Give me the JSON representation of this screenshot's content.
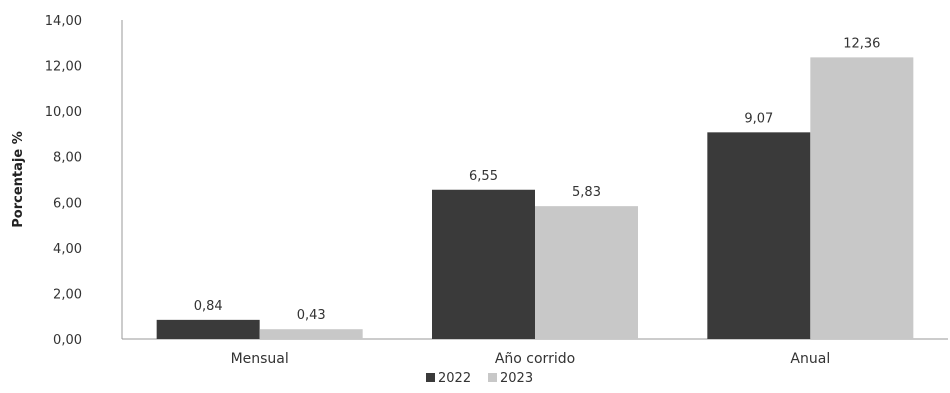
{
  "chart_data": {
    "type": "bar",
    "title": "",
    "xlabel": "",
    "ylabel": "Porcentaje %",
    "categories": [
      "Mensual",
      "Año corrido",
      "Anual"
    ],
    "series": [
      {
        "name": "2022",
        "values": [
          0.84,
          6.55,
          9.07
        ],
        "labels": [
          "0,84",
          "6,55",
          "9,07"
        ],
        "color": "#3a3a3a"
      },
      {
        "name": "2023",
        "values": [
          0.43,
          5.83,
          12.36
        ],
        "labels": [
          "0,43",
          "5,83",
          "12,36"
        ],
        "color": "#c8c8c8"
      }
    ],
    "ylim": [
      0,
      14
    ],
    "yticks": [
      0,
      2,
      4,
      6,
      8,
      10,
      12,
      14
    ],
    "ytick_labels": [
      "0,00",
      "2,00",
      "4,00",
      "6,00",
      "8,00",
      "10,00",
      "12,00",
      "14,00"
    ],
    "grid": false,
    "legend_position": "bottom-center"
  }
}
